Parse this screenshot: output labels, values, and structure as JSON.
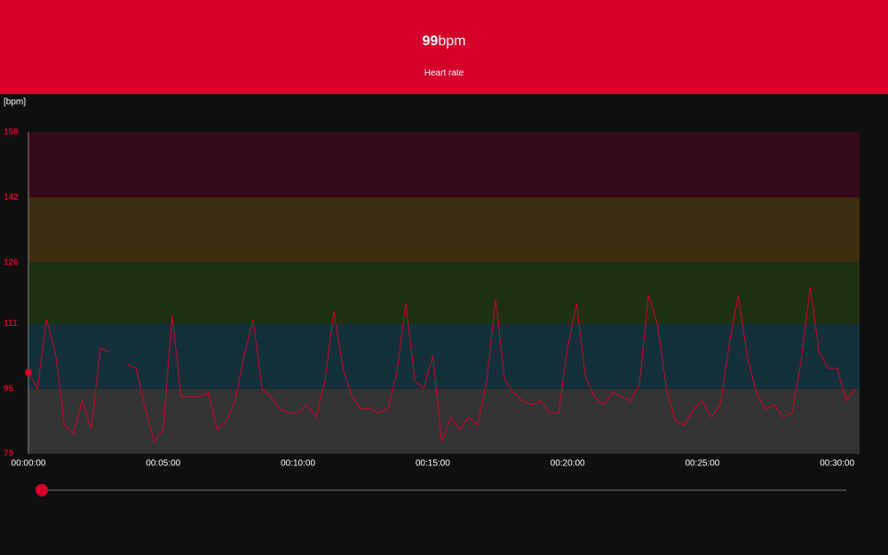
{
  "header": {
    "value": "99",
    "unit": "bpm",
    "label": "Heart rate"
  },
  "chart_data": {
    "type": "line",
    "y_label": "[bpm]",
    "x": [
      0,
      20,
      40,
      60,
      80,
      100,
      120,
      140,
      160,
      180,
      200,
      220,
      240,
      260,
      280,
      300,
      320,
      340,
      360,
      380,
      400,
      420,
      440,
      460,
      480,
      500,
      520,
      540,
      560,
      580,
      600,
      620,
      640,
      660,
      680,
      700,
      720,
      740,
      760,
      780,
      800,
      820,
      840,
      860,
      880,
      900,
      920,
      940,
      960,
      980,
      1000,
      1020,
      1040,
      1060,
      1080,
      1100,
      1120,
      1140,
      1160,
      1180,
      1200,
      1220,
      1240,
      1260,
      1280,
      1300,
      1320,
      1340,
      1360,
      1380,
      1400,
      1420,
      1440,
      1460,
      1480,
      1500,
      1520,
      1540,
      1560,
      1580,
      1600,
      1620,
      1640,
      1660,
      1680,
      1700,
      1720,
      1740,
      1760,
      1780,
      1800,
      1820,
      1840
    ],
    "series": [
      {
        "name": "Heart rate",
        "color": "#d4002a",
        "values": [
          99,
          95,
          112,
          104,
          86,
          84,
          92,
          85,
          105,
          104,
          null,
          101,
          100,
          90,
          82,
          85,
          113,
          93,
          93,
          93,
          94,
          85,
          87,
          92,
          103,
          112,
          95,
          93,
          90,
          89,
          89,
          91,
          88,
          97,
          114,
          100,
          93,
          90,
          90,
          89,
          90,
          99,
          116,
          97,
          95,
          103,
          82,
          88,
          85,
          88,
          86,
          97,
          117,
          97,
          94,
          92,
          91,
          92,
          89,
          89,
          105,
          116,
          98,
          93,
          91,
          94,
          93,
          92,
          96,
          118,
          111,
          95,
          87,
          86,
          90,
          92,
          88,
          91,
          106,
          118,
          103,
          94,
          90,
          91,
          88,
          89,
          102,
          120,
          104,
          100,
          100,
          92,
          95
        ]
      }
    ],
    "xlim": [
      0,
      1850
    ],
    "xticks": [
      {
        "value": 0,
        "label": "00:00:00"
      },
      {
        "value": 300,
        "label": "00:05:00"
      },
      {
        "value": 600,
        "label": "00:10:00"
      },
      {
        "value": 900,
        "label": "00:15:00"
      },
      {
        "value": 1200,
        "label": "00:20:00"
      },
      {
        "value": 1500,
        "label": "00:25:00"
      },
      {
        "value": 1800,
        "label": "00:30:00"
      }
    ],
    "ylim": [
      79,
      158
    ],
    "yticks": [
      79,
      95,
      111,
      126,
      142,
      158
    ],
    "zones": [
      {
        "from": 79,
        "to": 95,
        "color": "#333333"
      },
      {
        "from": 95,
        "to": 111,
        "color": "#13303a"
      },
      {
        "from": 111,
        "to": 126,
        "color": "#1d3110"
      },
      {
        "from": 126,
        "to": 142,
        "color": "#3d3010"
      },
      {
        "from": 142,
        "to": 158,
        "color": "#35081b"
      }
    ]
  }
}
